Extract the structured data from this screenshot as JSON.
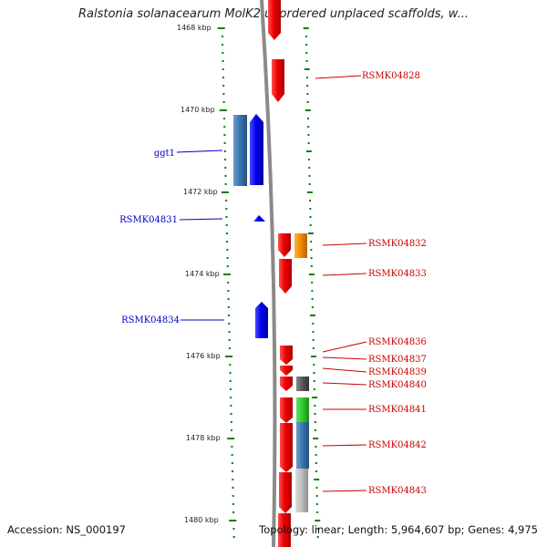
{
  "title": "Ralstonia solanacearum MolK2 unordered unplaced scaffolds, w...",
  "accession": "Accession: NS_000197",
  "topology": "Topology: linear; Length: 5,964,607 bp; Genes: 4,975",
  "colors": {
    "left_strand": "#0000ee",
    "right_strand": "#ee0000",
    "ruler": "#008000",
    "backbone": "#888888"
  },
  "ruler": {
    "unit": "kbp",
    "labels": [
      "1468 kbp",
      "1470 kbp",
      "1472 kbp",
      "1474 kbp",
      "1476 kbp",
      "1478 kbp",
      "1480 kbp"
    ]
  },
  "genes_left": [
    {
      "label": "ggt1"
    },
    {
      "label": "RSMK04831"
    },
    {
      "label": "RSMK04834"
    }
  ],
  "genes_right": [
    {
      "label": "RSMK04828"
    },
    {
      "label": "RSMK04832"
    },
    {
      "label": "RSMK04833"
    },
    {
      "label": "RSMK04836"
    },
    {
      "label": "RSMK04837"
    },
    {
      "label": "RSMK04839"
    },
    {
      "label": "RSMK04840"
    },
    {
      "label": "RSMK04841"
    },
    {
      "label": "RSMK04842"
    },
    {
      "label": "RSMK04843"
    }
  ]
}
